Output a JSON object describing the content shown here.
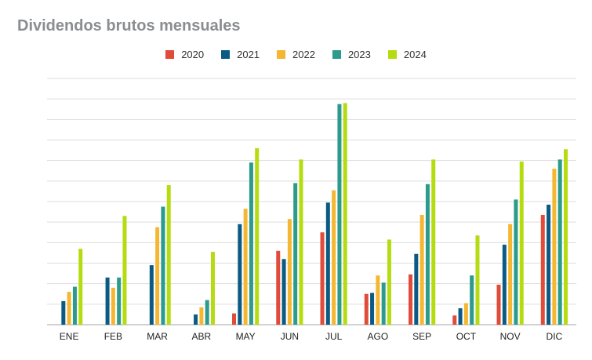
{
  "title": "Dividendos brutos mensuales",
  "chart_data": {
    "type": "bar",
    "title": "Dividendos brutos mensuales",
    "xlabel": "",
    "ylabel": "",
    "legend_position": "top-center",
    "grid": true,
    "y_gridlines": 12,
    "ylim": [
      0,
      12
    ],
    "categories": [
      "ENE",
      "FEB",
      "MAR",
      "ABR",
      "MAY",
      "JUN",
      "JUL",
      "AGO",
      "SEP",
      "OCT",
      "NOV",
      "DIC"
    ],
    "series": [
      {
        "name": "2020",
        "color": "#e04b3a",
        "values": [
          0,
          0,
          0,
          0,
          0.55,
          3.6,
          4.5,
          1.5,
          2.45,
          0.45,
          1.95,
          5.35
        ]
      },
      {
        "name": "2021",
        "color": "#0a5a83",
        "values": [
          1.15,
          2.3,
          2.9,
          0.5,
          4.9,
          3.2,
          5.95,
          1.55,
          3.45,
          0.8,
          3.9,
          5.85
        ]
      },
      {
        "name": "2022",
        "color": "#f5b731",
        "values": [
          1.6,
          1.8,
          4.75,
          0.85,
          5.65,
          5.15,
          6.55,
          2.4,
          5.35,
          1.05,
          4.9,
          7.6
        ]
      },
      {
        "name": "2023",
        "color": "#2c9a8c",
        "values": [
          1.85,
          2.3,
          5.75,
          1.2,
          7.9,
          6.9,
          10.75,
          2.05,
          6.85,
          2.4,
          6.1,
          8.05
        ]
      },
      {
        "name": "2024",
        "color": "#b5dc10",
        "values": [
          3.7,
          5.3,
          6.8,
          3.55,
          8.6,
          8.05,
          10.8,
          4.15,
          8.05,
          4.35,
          7.95,
          8.55
        ]
      }
    ]
  }
}
